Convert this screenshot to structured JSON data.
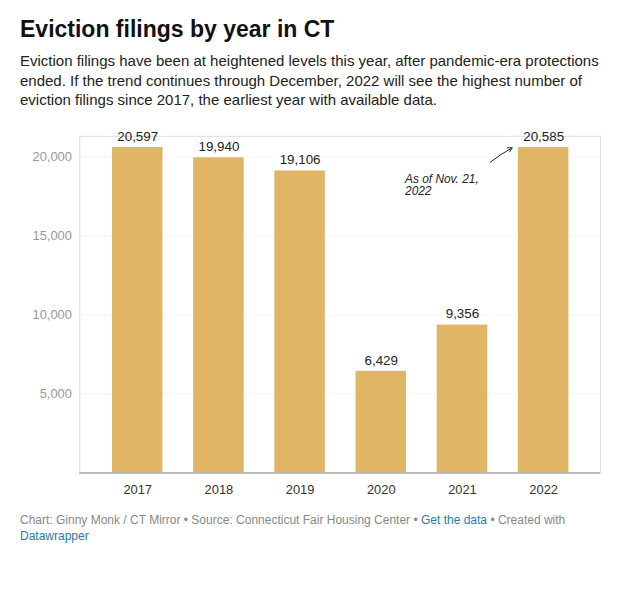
{
  "chart_data": {
    "type": "bar",
    "title": "Eviction filings by year in CT",
    "subtitle": "Eviction filings have been at heightened levels this year, after pandemic-era protections ended. If the trend continues through December, 2022 will see the highest number of eviction filings since 2017, the earliest year with available data.",
    "categories": [
      "2017",
      "2018",
      "2019",
      "2020",
      "2021",
      "2022"
    ],
    "values": [
      20597,
      19940,
      19106,
      6429,
      9356,
      20585
    ],
    "value_labels": [
      "20,597",
      "19,940",
      "19,106",
      "6,429",
      "9,356",
      "20,585"
    ],
    "data_labels": true,
    "color": "#e0b565",
    "ylim": [
      0,
      21300
    ],
    "yticks": [
      {
        "value": 5000,
        "label": "5,000"
      },
      {
        "value": 10000,
        "label": "10,000"
      },
      {
        "value": 15000,
        "label": "15,000"
      },
      {
        "value": 20000,
        "label": "20,000"
      }
    ],
    "grid": true,
    "annotation": {
      "category": "2022",
      "text": "As of Nov. 21, 2022"
    },
    "caption": [
      "Chart: Ginny Monk / CT Mirror • Source: Connecticut Fair Housing Center • ",
      "Get the data",
      " • Created with ",
      "Datawrapper"
    ]
  }
}
